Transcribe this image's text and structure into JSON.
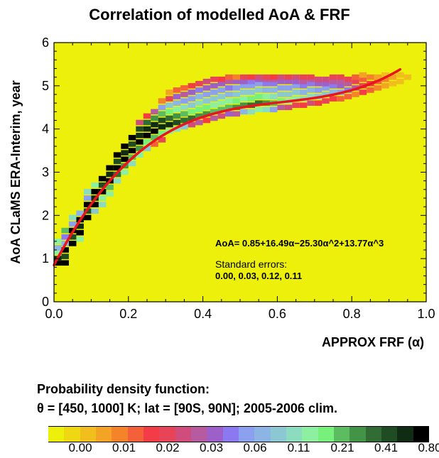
{
  "chart_data": {
    "type": "heatmap",
    "title": "Correlation of modelled AoA & FRF",
    "xlabel": "APPROX FRF (α)",
    "ylabel": "AoA CLaMS ERA-Interim, year",
    "xlim": [
      0.0,
      1.0
    ],
    "ylim": [
      0,
      6
    ],
    "x_ticks": [
      "0.0",
      "0.2",
      "0.4",
      "0.6",
      "0.8",
      "1.0"
    ],
    "y_ticks": [
      "0",
      "1",
      "2",
      "3",
      "4",
      "5",
      "6"
    ],
    "grid": false,
    "background_color": "#ecf00a",
    "fit": {
      "equation": "AoA= 0.85+16.49α−25.30α^2+13.77α^3",
      "coefficients": [
        0.85,
        16.49,
        -25.3,
        13.77
      ],
      "x_range": [
        0.0,
        0.93
      ],
      "color": "#e8141e",
      "errors_label": "Standard errors:",
      "errors": "0.00,  0.03,  0.12,  0.11"
    },
    "colorbar": {
      "title": "Probability density function:",
      "subtitle": "θ = [450, 1000] K; lat = [90S, 90N]; 2005-2006 clim.",
      "tick_labels": [
        "0.00",
        "0.01",
        "0.02",
        "0.03",
        "0.06",
        "0.11",
        "0.21",
        "0.41",
        "0.80"
      ],
      "colors": [
        "#ecf00a",
        "#efd812",
        "#f2be1e",
        "#f4a424",
        "#f4832a",
        "#f4603a",
        "#f43c46",
        "#e84458",
        "#d04c7c",
        "#b85aa0",
        "#9c60c8",
        "#8c78f0",
        "#8ca0f0",
        "#8cb4e4",
        "#8cc8d4",
        "#8cdcc0",
        "#8cf0a0",
        "#78f07c",
        "#5cbc60",
        "#449448",
        "#306c34",
        "#204c24",
        "#102c14",
        "#000000"
      ]
    },
    "cell_width_x": 0.02,
    "cell_height_y": 0.125,
    "cells": [
      [
        0.01,
        0.9,
        23
      ],
      [
        0.01,
        1.0,
        22
      ],
      [
        0.01,
        1.15,
        16
      ],
      [
        0.01,
        1.25,
        13
      ],
      [
        0.01,
        1.4,
        16
      ],
      [
        0.03,
        0.9,
        23
      ],
      [
        0.03,
        1.05,
        21
      ],
      [
        0.03,
        1.2,
        23
      ],
      [
        0.03,
        1.35,
        13
      ],
      [
        0.03,
        1.5,
        11
      ],
      [
        0.03,
        1.65,
        18
      ],
      [
        0.05,
        1.35,
        23
      ],
      [
        0.05,
        1.5,
        21
      ],
      [
        0.05,
        1.65,
        23
      ],
      [
        0.05,
        1.8,
        12
      ],
      [
        0.05,
        1.95,
        15
      ],
      [
        0.07,
        1.6,
        23
      ],
      [
        0.07,
        1.75,
        22
      ],
      [
        0.07,
        1.9,
        23
      ],
      [
        0.07,
        2.05,
        13
      ],
      [
        0.07,
        1.45,
        16
      ],
      [
        0.09,
        1.95,
        23
      ],
      [
        0.09,
        2.1,
        21
      ],
      [
        0.09,
        2.25,
        23
      ],
      [
        0.09,
        2.4,
        12
      ],
      [
        0.09,
        2.55,
        15
      ],
      [
        0.11,
        2.25,
        23
      ],
      [
        0.11,
        2.4,
        22
      ],
      [
        0.11,
        2.55,
        23
      ],
      [
        0.11,
        2.7,
        16
      ],
      [
        0.11,
        2.1,
        14
      ],
      [
        0.13,
        2.55,
        23
      ],
      [
        0.13,
        2.7,
        21
      ],
      [
        0.13,
        2.85,
        23
      ],
      [
        0.13,
        2.4,
        16
      ],
      [
        0.13,
        2.25,
        15
      ],
      [
        0.15,
        2.8,
        23
      ],
      [
        0.15,
        2.95,
        22
      ],
      [
        0.15,
        3.1,
        23
      ],
      [
        0.15,
        2.65,
        18
      ],
      [
        0.15,
        2.5,
        16
      ],
      [
        0.17,
        3.1,
        23
      ],
      [
        0.17,
        3.25,
        21
      ],
      [
        0.17,
        3.4,
        23
      ],
      [
        0.17,
        2.95,
        20
      ],
      [
        0.17,
        2.8,
        15
      ],
      [
        0.19,
        3.3,
        23
      ],
      [
        0.19,
        3.45,
        22
      ],
      [
        0.19,
        3.6,
        23
      ],
      [
        0.19,
        3.15,
        19
      ],
      [
        0.19,
        3.0,
        16
      ],
      [
        0.21,
        3.5,
        23
      ],
      [
        0.21,
        3.65,
        21
      ],
      [
        0.21,
        3.8,
        23
      ],
      [
        0.21,
        3.35,
        18
      ],
      [
        0.21,
        3.2,
        15
      ],
      [
        0.23,
        3.7,
        23
      ],
      [
        0.23,
        3.85,
        22
      ],
      [
        0.23,
        4.0,
        21
      ],
      [
        0.23,
        3.55,
        19
      ],
      [
        0.23,
        3.4,
        16
      ],
      [
        0.23,
        4.15,
        8
      ],
      [
        0.25,
        3.85,
        23
      ],
      [
        0.25,
        4.0,
        22
      ],
      [
        0.25,
        4.15,
        20
      ],
      [
        0.25,
        3.7,
        17
      ],
      [
        0.25,
        3.55,
        14
      ],
      [
        0.25,
        4.3,
        6
      ],
      [
        0.27,
        3.95,
        23
      ],
      [
        0.27,
        4.1,
        22
      ],
      [
        0.27,
        4.25,
        19
      ],
      [
        0.27,
        3.8,
        18
      ],
      [
        0.27,
        4.4,
        9
      ],
      [
        0.27,
        3.65,
        5
      ],
      [
        0.29,
        4.05,
        22
      ],
      [
        0.29,
        4.2,
        21
      ],
      [
        0.29,
        4.35,
        18
      ],
      [
        0.29,
        3.9,
        17
      ],
      [
        0.29,
        4.5,
        12
      ],
      [
        0.29,
        4.65,
        4
      ],
      [
        0.29,
        3.75,
        7
      ],
      [
        0.31,
        4.1,
        22
      ],
      [
        0.31,
        4.25,
        20
      ],
      [
        0.31,
        4.4,
        17
      ],
      [
        0.31,
        3.95,
        16
      ],
      [
        0.31,
        4.55,
        14
      ],
      [
        0.31,
        4.7,
        7
      ],
      [
        0.31,
        4.85,
        3
      ],
      [
        0.33,
        4.15,
        21
      ],
      [
        0.33,
        4.3,
        19
      ],
      [
        0.33,
        4.45,
        16
      ],
      [
        0.33,
        4.6,
        13
      ],
      [
        0.33,
        4.0,
        15
      ],
      [
        0.33,
        4.75,
        10
      ],
      [
        0.33,
        4.9,
        5
      ],
      [
        0.35,
        4.2,
        20
      ],
      [
        0.35,
        4.35,
        18
      ],
      [
        0.35,
        4.5,
        15
      ],
      [
        0.35,
        4.65,
        12
      ],
      [
        0.35,
        4.05,
        14
      ],
      [
        0.35,
        4.8,
        9
      ],
      [
        0.35,
        4.95,
        5
      ],
      [
        0.37,
        4.25,
        20
      ],
      [
        0.37,
        4.4,
        17
      ],
      [
        0.37,
        4.55,
        14
      ],
      [
        0.37,
        4.7,
        12
      ],
      [
        0.37,
        4.85,
        10
      ],
      [
        0.37,
        5.0,
        6
      ],
      [
        0.37,
        4.1,
        8
      ],
      [
        0.39,
        4.3,
        19
      ],
      [
        0.39,
        4.45,
        17
      ],
      [
        0.39,
        4.6,
        15
      ],
      [
        0.39,
        4.75,
        13
      ],
      [
        0.39,
        4.9,
        11
      ],
      [
        0.39,
        5.05,
        7
      ],
      [
        0.39,
        4.15,
        9
      ],
      [
        0.41,
        4.35,
        19
      ],
      [
        0.41,
        4.5,
        17
      ],
      [
        0.41,
        4.65,
        14
      ],
      [
        0.41,
        4.8,
        12
      ],
      [
        0.41,
        4.95,
        10
      ],
      [
        0.41,
        5.1,
        8
      ],
      [
        0.41,
        4.2,
        6
      ],
      [
        0.43,
        4.4,
        18
      ],
      [
        0.43,
        4.55,
        16
      ],
      [
        0.43,
        4.7,
        14
      ],
      [
        0.43,
        4.85,
        12
      ],
      [
        0.43,
        5.0,
        10
      ],
      [
        0.43,
        5.15,
        7
      ],
      [
        0.43,
        4.25,
        9
      ],
      [
        0.45,
        4.45,
        18
      ],
      [
        0.45,
        4.6,
        16
      ],
      [
        0.45,
        4.75,
        14
      ],
      [
        0.45,
        4.9,
        12
      ],
      [
        0.45,
        5.05,
        10
      ],
      [
        0.45,
        5.15,
        6
      ],
      [
        0.45,
        4.3,
        8
      ],
      [
        0.47,
        4.5,
        18
      ],
      [
        0.47,
        4.65,
        16
      ],
      [
        0.47,
        4.8,
        13
      ],
      [
        0.47,
        4.95,
        11
      ],
      [
        0.47,
        5.1,
        9
      ],
      [
        0.47,
        4.35,
        10
      ],
      [
        0.47,
        5.2,
        5
      ],
      [
        0.49,
        4.5,
        19
      ],
      [
        0.49,
        4.65,
        17
      ],
      [
        0.49,
        4.8,
        14
      ],
      [
        0.49,
        4.95,
        12
      ],
      [
        0.49,
        5.1,
        10
      ],
      [
        0.49,
        4.35,
        9
      ],
      [
        0.49,
        5.2,
        4
      ],
      [
        0.51,
        4.55,
        19
      ],
      [
        0.51,
        4.7,
        16
      ],
      [
        0.51,
        4.85,
        14
      ],
      [
        0.51,
        5.0,
        12
      ],
      [
        0.51,
        5.1,
        10
      ],
      [
        0.51,
        4.4,
        13
      ],
      [
        0.51,
        5.2,
        7
      ],
      [
        0.53,
        4.55,
        20
      ],
      [
        0.53,
        4.7,
        17
      ],
      [
        0.53,
        4.85,
        14
      ],
      [
        0.53,
        5.0,
        12
      ],
      [
        0.53,
        5.1,
        11
      ],
      [
        0.53,
        4.4,
        15
      ],
      [
        0.53,
        5.2,
        6
      ],
      [
        0.55,
        4.6,
        20
      ],
      [
        0.55,
        4.75,
        17
      ],
      [
        0.55,
        4.9,
        14
      ],
      [
        0.55,
        5.05,
        12
      ],
      [
        0.55,
        5.15,
        10
      ],
      [
        0.55,
        4.45,
        16
      ],
      [
        0.55,
        5.2,
        8
      ],
      [
        0.57,
        4.6,
        19
      ],
      [
        0.57,
        4.75,
        16
      ],
      [
        0.57,
        4.9,
        13
      ],
      [
        0.57,
        5.05,
        11
      ],
      [
        0.57,
        5.15,
        9
      ],
      [
        0.57,
        4.45,
        15
      ],
      [
        0.57,
        5.2,
        7
      ],
      [
        0.59,
        4.6,
        18
      ],
      [
        0.59,
        4.75,
        15
      ],
      [
        0.59,
        4.9,
        13
      ],
      [
        0.59,
        5.05,
        11
      ],
      [
        0.59,
        5.15,
        9
      ],
      [
        0.59,
        4.45,
        12
      ],
      [
        0.59,
        5.2,
        6
      ],
      [
        0.61,
        4.65,
        17
      ],
      [
        0.61,
        4.8,
        14
      ],
      [
        0.61,
        4.95,
        12
      ],
      [
        0.61,
        5.1,
        10
      ],
      [
        0.61,
        5.2,
        8
      ],
      [
        0.61,
        4.5,
        9
      ],
      [
        0.63,
        4.65,
        16
      ],
      [
        0.63,
        4.8,
        14
      ],
      [
        0.63,
        4.95,
        12
      ],
      [
        0.63,
        5.1,
        10
      ],
      [
        0.63,
        5.2,
        7
      ],
      [
        0.63,
        4.5,
        8
      ],
      [
        0.65,
        4.7,
        16
      ],
      [
        0.65,
        4.85,
        14
      ],
      [
        0.65,
        5.0,
        12
      ],
      [
        0.65,
        5.1,
        10
      ],
      [
        0.65,
        5.2,
        8
      ],
      [
        0.65,
        4.55,
        7
      ],
      [
        0.67,
        4.7,
        15
      ],
      [
        0.67,
        4.85,
        13
      ],
      [
        0.67,
        5.0,
        11
      ],
      [
        0.67,
        5.1,
        9
      ],
      [
        0.67,
        5.2,
        7
      ],
      [
        0.67,
        4.55,
        6
      ],
      [
        0.69,
        4.75,
        15
      ],
      [
        0.69,
        4.9,
        13
      ],
      [
        0.69,
        5.05,
        11
      ],
      [
        0.69,
        5.15,
        9
      ],
      [
        0.69,
        5.2,
        7
      ],
      [
        0.69,
        4.6,
        8
      ],
      [
        0.71,
        4.75,
        14
      ],
      [
        0.71,
        4.9,
        12
      ],
      [
        0.71,
        5.05,
        10
      ],
      [
        0.71,
        5.15,
        8
      ],
      [
        0.71,
        4.6,
        6
      ],
      [
        0.73,
        4.8,
        14
      ],
      [
        0.73,
        4.95,
        12
      ],
      [
        0.73,
        5.05,
        10
      ],
      [
        0.73,
        5.15,
        8
      ],
      [
        0.73,
        4.65,
        7
      ],
      [
        0.75,
        4.85,
        13
      ],
      [
        0.75,
        5.0,
        11
      ],
      [
        0.75,
        5.1,
        9
      ],
      [
        0.75,
        5.2,
        7
      ],
      [
        0.75,
        4.7,
        6
      ],
      [
        0.77,
        4.85,
        12
      ],
      [
        0.77,
        5.0,
        10
      ],
      [
        0.77,
        5.1,
        9
      ],
      [
        0.77,
        5.2,
        7
      ],
      [
        0.77,
        4.7,
        5
      ],
      [
        0.79,
        4.9,
        11
      ],
      [
        0.79,
        5.05,
        9
      ],
      [
        0.79,
        5.15,
        7
      ],
      [
        0.79,
        4.75,
        5
      ],
      [
        0.81,
        4.95,
        9
      ],
      [
        0.81,
        5.1,
        7
      ],
      [
        0.81,
        5.2,
        5
      ],
      [
        0.81,
        4.8,
        4
      ],
      [
        0.83,
        5.0,
        7
      ],
      [
        0.83,
        5.15,
        5
      ],
      [
        0.83,
        4.85,
        6
      ],
      [
        0.83,
        5.25,
        3
      ],
      [
        0.85,
        5.05,
        6
      ],
      [
        0.85,
        5.2,
        4
      ],
      [
        0.85,
        4.9,
        5
      ],
      [
        0.87,
        5.1,
        5
      ],
      [
        0.87,
        5.2,
        3
      ],
      [
        0.87,
        4.95,
        4
      ],
      [
        0.89,
        5.15,
        4
      ],
      [
        0.89,
        5.25,
        2
      ],
      [
        0.89,
        5.0,
        3
      ],
      [
        0.91,
        5.2,
        3
      ],
      [
        0.91,
        5.05,
        2
      ],
      [
        0.93,
        5.25,
        2
      ],
      [
        0.93,
        5.1,
        2
      ],
      [
        0.95,
        5.2,
        2
      ]
    ]
  }
}
